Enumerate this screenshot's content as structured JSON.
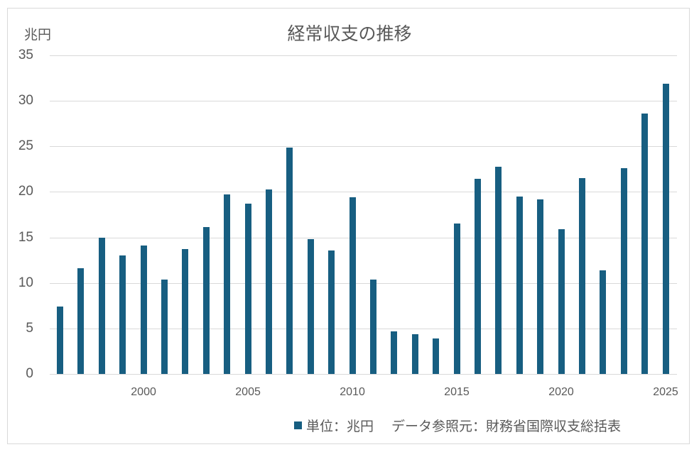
{
  "chart": {
    "title": "経常収支の推移",
    "y_unit": "兆円",
    "legend_label": "単位：兆円　 データ参照元：財務省国際収支総括表",
    "bar_color": "#175e81",
    "grid_color": "#d9d9d9",
    "yticks": [
      "0",
      "5",
      "10",
      "15",
      "20",
      "25",
      "30",
      "35"
    ],
    "xticks": [
      "2000",
      "2005",
      "2010",
      "2015",
      "2020",
      "2025"
    ]
  },
  "chart_data": {
    "type": "bar",
    "title": "経常収支の推移",
    "xlabel": "",
    "ylabel": "兆円",
    "ylim": [
      0,
      35
    ],
    "yticks": [
      0,
      5,
      10,
      15,
      20,
      25,
      30,
      35
    ],
    "xtick_labels": [
      "2000",
      "2005",
      "2010",
      "2015",
      "2020",
      "2025"
    ],
    "grid": true,
    "legend": {
      "position": "bottom",
      "entries": [
        "単位：兆円　 データ参照元：財務省国際収支総括表"
      ]
    },
    "categories": [
      1996,
      1997,
      1998,
      1999,
      2000,
      2001,
      2002,
      2003,
      2004,
      2005,
      2006,
      2007,
      2008,
      2009,
      2010,
      2011,
      2012,
      2013,
      2014,
      2015,
      2016,
      2017,
      2018,
      2019,
      2020,
      2021,
      2022,
      2023,
      2024,
      2025
    ],
    "series": [
      {
        "name": "単位：兆円",
        "values": [
          7.4,
          11.6,
          15.0,
          13.0,
          14.1,
          10.4,
          13.7,
          16.1,
          19.7,
          18.7,
          20.3,
          24.9,
          14.8,
          13.6,
          19.4,
          10.4,
          4.7,
          4.4,
          3.9,
          16.5,
          21.4,
          22.8,
          19.5,
          19.2,
          15.9,
          21.5,
          11.4,
          22.6,
          28.6,
          31.9
        ]
      }
    ]
  }
}
